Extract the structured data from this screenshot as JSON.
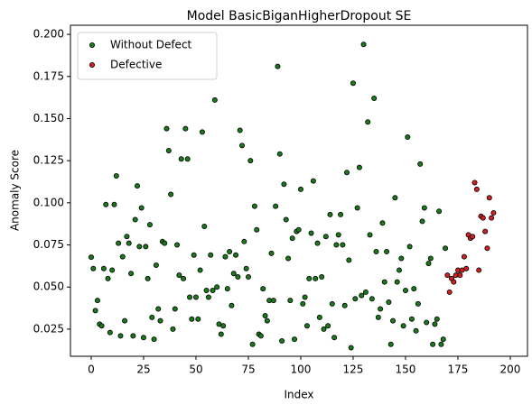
{
  "chart_data": {
    "type": "scatter",
    "title": "Model BasicBiganHigherDropout SE",
    "x_label": "Index",
    "y_label": "Anomaly Score",
    "xlim": [
      -9.9,
      208.2
    ],
    "ylim": [
      0.0089,
      0.2054
    ],
    "xticks": [
      0,
      25,
      50,
      75,
      100,
      125,
      150,
      175,
      200
    ],
    "yticks": [
      0.025,
      {
        "value": 0.05,
        "label": "0.050"
      },
      0.075,
      {
        "value": 0.1,
        "label": "0.100"
      },
      0.125,
      {
        "value": 0.15,
        "label": "0.150"
      },
      0.175,
      {
        "value": 0.2,
        "label": "0.200"
      }
    ],
    "legend": "upper left",
    "series": [
      {
        "name": "Without Defect",
        "color": "#1a7a1a",
        "x": [
          0,
          1,
          2,
          3,
          4,
          5,
          6,
          7,
          8,
          9,
          10,
          11,
          12,
          13,
          14,
          15,
          16,
          17,
          18,
          19,
          20,
          21,
          22,
          23,
          24,
          25,
          26,
          27,
          28,
          29,
          30,
          31,
          32,
          33,
          34,
          35,
          36,
          37,
          38,
          39,
          40,
          41,
          42,
          43,
          44,
          45,
          46,
          47,
          48,
          49,
          50,
          51,
          52,
          53,
          54,
          55,
          56,
          57,
          58,
          59,
          60,
          61,
          62,
          63,
          64,
          65,
          66,
          67,
          68,
          69,
          70,
          71,
          72,
          73,
          74,
          75,
          76,
          77,
          78,
          79,
          80,
          81,
          82,
          83,
          84,
          85,
          86,
          87,
          88,
          89,
          90,
          91,
          92,
          93,
          94,
          95,
          96,
          97,
          98,
          99,
          100,
          101,
          102,
          103,
          104,
          105,
          106,
          107,
          108,
          109,
          110,
          111,
          112,
          113,
          114,
          115,
          116,
          117,
          118,
          119,
          120,
          121,
          122,
          123,
          124,
          125,
          126,
          127,
          128,
          129,
          130,
          131,
          132,
          133,
          134,
          135,
          136,
          137,
          138,
          139,
          140,
          141,
          142,
          143,
          144,
          145,
          146,
          147,
          148,
          149,
          150,
          151,
          152,
          153,
          154,
          155,
          156,
          157,
          158,
          159,
          160,
          161,
          162,
          163,
          164,
          165,
          166,
          167,
          168,
          169
        ],
        "values": [
          0.0677,
          0.061,
          0.036,
          0.042,
          0.028,
          0.027,
          0.061,
          0.099,
          0.055,
          0.023,
          0.06,
          0.099,
          0.116,
          0.076,
          0.021,
          0.068,
          0.03,
          0.08,
          0.076,
          0.058,
          0.021,
          0.09,
          0.11,
          0.074,
          0.097,
          0.02,
          0.074,
          0.055,
          0.087,
          0.032,
          0.019,
          0.063,
          0.037,
          0.03,
          0.077,
          0.076,
          0.144,
          0.131,
          0.105,
          0.025,
          0.037,
          0.075,
          0.057,
          0.126,
          0.055,
          0.144,
          0.126,
          0.044,
          0.031,
          0.069,
          0.044,
          0.031,
          0.06,
          0.142,
          0.086,
          0.048,
          0.044,
          0.069,
          0.048,
          0.161,
          0.05,
          0.028,
          0.022,
          0.027,
          0.068,
          0.049,
          0.071,
          0.039,
          0.058,
          0.069,
          0.056,
          0.143,
          0.134,
          0.077,
          0.061,
          0.056,
          0.125,
          0.016,
          0.098,
          0.084,
          0.022,
          0.021,
          0.049,
          0.033,
          0.03,
          0.042,
          0.07,
          0.042,
          0.098,
          0.181,
          0.129,
          0.018,
          0.111,
          0.09,
          0.067,
          0.042,
          0.079,
          0.019,
          0.083,
          0.084,
          0.108,
          0.04,
          0.044,
          0.027,
          0.055,
          0.082,
          0.113,
          0.055,
          0.076,
          0.032,
          0.056,
          0.025,
          0.08,
          0.027,
          0.093,
          0.04,
          0.02,
          0.075,
          0.081,
          0.093,
          0.075,
          0.039,
          0.118,
          0.066,
          0.014,
          0.171,
          0.043,
          0.097,
          0.121,
          0.045,
          0.194,
          0.047,
          0.148,
          0.081,
          0.043,
          0.162,
          0.071,
          0.032,
          0.037,
          0.088,
          0.053,
          0.071,
          0.041,
          0.016,
          0.03,
          0.103,
          0.053,
          0.06,
          0.067,
          0.027,
          0.048,
          0.139,
          0.074,
          0.031,
          0.049,
          0.024,
          0.04,
          0.123,
          0.089,
          0.097,
          0.029,
          0.064,
          0.067,
          0.016,
          0.028,
          0.031,
          0.095,
          0.016,
          0.019,
          0.073
        ]
      },
      {
        "name": "Defective",
        "color": "#d42020",
        "x": [
          170,
          171,
          172,
          173,
          174,
          175,
          176,
          177,
          178,
          179,
          180,
          181,
          182,
          183,
          184,
          185,
          186,
          187,
          188,
          189,
          190,
          191,
          192
        ],
        "values": [
          0.057,
          0.047,
          0.055,
          0.053,
          0.057,
          0.06,
          0.057,
          0.06,
          0.068,
          0.061,
          0.081,
          0.079,
          0.08,
          0.112,
          0.108,
          0.06,
          0.092,
          0.091,
          0.083,
          0.073,
          0.103,
          0.091,
          0.094
        ]
      }
    ]
  }
}
